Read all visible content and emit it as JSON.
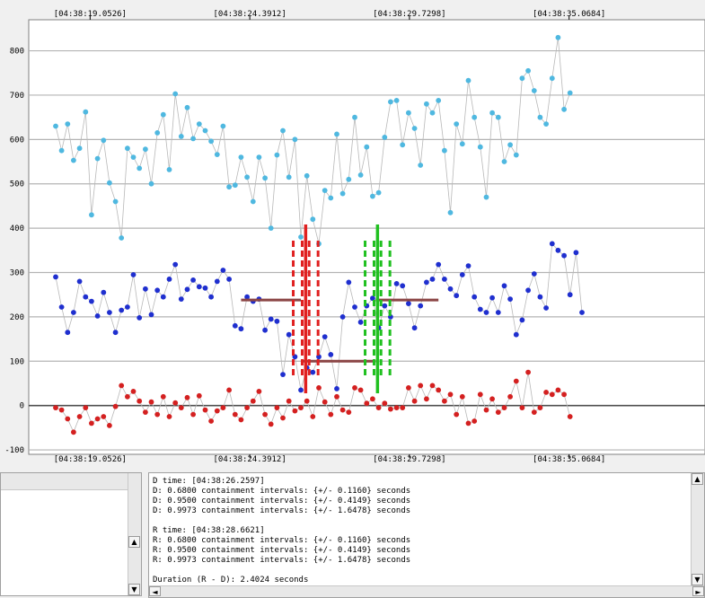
{
  "chart_data": {
    "type": "scatter",
    "title": "",
    "xlabel": "",
    "ylabel": "",
    "ylim": [
      -110,
      870
    ],
    "y_ticks": [
      "800",
      "700",
      "600",
      "500",
      "400",
      "300",
      "200",
      "100",
      "0",
      "-100"
    ],
    "time_labels": [
      "[04:38:19.0526]",
      "[04:38:24.3912]",
      "[04:38:29.7298]",
      "[04:38:35.0684]"
    ],
    "grid": true,
    "legend": "none",
    "sample_interval_s": 0.2,
    "time_origin_s": 17.9,
    "series": [
      {
        "color": "#4fb8e0",
        "values": [
          630,
          575,
          635,
          553,
          580,
          662,
          430,
          557,
          598,
          502,
          460,
          378,
          580,
          560,
          535,
          578,
          500,
          615,
          656,
          532,
          703,
          607,
          672,
          602,
          635,
          620,
          596,
          566,
          630,
          493,
          497,
          560,
          515,
          460,
          560,
          513,
          400,
          565,
          620,
          515,
          600,
          380,
          518,
          420,
          365,
          485,
          468,
          612,
          478,
          510,
          650,
          520,
          583,
          472,
          480,
          605,
          685,
          688,
          588,
          660,
          625,
          542,
          680,
          660,
          688,
          575,
          435,
          635,
          590,
          733,
          650,
          583,
          470,
          660,
          650,
          550,
          588,
          565,
          738,
          755,
          710,
          650,
          635,
          738,
          830,
          668,
          705
        ]
      },
      {
        "color": "#1f2fcf",
        "values": [
          290,
          222,
          165,
          210,
          280,
          245,
          235,
          202,
          255,
          210,
          165,
          215,
          222,
          295,
          198,
          263,
          205,
          260,
          245,
          285,
          318,
          240,
          262,
          283,
          268,
          265,
          245,
          280,
          305,
          285,
          180,
          173,
          245,
          235,
          240,
          170,
          195,
          190,
          70,
          160,
          110,
          35,
          85,
          75,
          110,
          155,
          115,
          38,
          200,
          278,
          222,
          188,
          225,
          242,
          175,
          225,
          200,
          275,
          270,
          230,
          175,
          225,
          278,
          285,
          318,
          285,
          263,
          248,
          295,
          315,
          245,
          217,
          210,
          243,
          210,
          270,
          240,
          160,
          193,
          260,
          297,
          245,
          220,
          365,
          350,
          338,
          250,
          345,
          210
        ]
      },
      {
        "color": "#d42020",
        "values": [
          -5,
          -10,
          -30,
          -60,
          -25,
          -5,
          -40,
          -30,
          -25,
          -45,
          -2,
          45,
          20,
          32,
          10,
          -15,
          8,
          -20,
          20,
          -25,
          6,
          -5,
          18,
          -20,
          22,
          -10,
          -35,
          -12,
          -5,
          35,
          -20,
          -32,
          -5,
          10,
          32,
          -20,
          -42,
          -5,
          -28,
          10,
          -12,
          -5,
          10,
          -25,
          40,
          8,
          -20,
          20,
          -10,
          -15,
          40,
          35,
          5,
          15,
          -5,
          5,
          -8,
          -5,
          -5,
          40,
          10,
          45,
          15,
          45,
          35,
          10,
          25,
          -20,
          20,
          -40,
          -35,
          25,
          -10,
          15,
          -15,
          -5,
          20,
          55,
          -5,
          75,
          -15,
          -5,
          30,
          25,
          35,
          25,
          -25
        ]
      }
    ],
    "segments": [
      {
        "color": "#8b4545",
        "x0": 24.1,
        "x1": 26.1,
        "y": 238
      },
      {
        "color": "#8b4545",
        "x0": 26.1,
        "x1": 28.6,
        "y": 100
      },
      {
        "color": "#8b4545",
        "x0": 28.6,
        "x1": 30.7,
        "y": 238
      }
    ],
    "markers": [
      {
        "color": "#e02020",
        "center": 26.2597,
        "ci": [
          0.116,
          0.4149
        ]
      },
      {
        "color": "#20c020",
        "center": 28.6621,
        "ci": [
          0.116,
          0.4149
        ]
      }
    ]
  },
  "panel": {
    "lines": [
      "D time: [04:38:26.2597]",
      "D: 0.6800 containment intervals: {+/- 0.1160} seconds",
      "D: 0.9500 containment intervals: {+/- 0.4149} seconds",
      "D: 0.9973 containment intervals: {+/- 1.6478} seconds",
      "",
      "R time: [04:38:28.6621]",
      "R: 0.6800 containment intervals: {+/- 0.1160} seconds",
      "R: 0.9500 containment intervals: {+/- 0.4149} seconds",
      "R: 0.9973 containment intervals: {+/- 1.6478} seconds",
      "",
      "Duration (R - D): 2.4024 seconds"
    ]
  },
  "icons": {
    "scroll_up": "scroll-up-arrow-icon",
    "scroll_down": "scroll-down-arrow-icon",
    "scroll_left": "scroll-left-arrow-icon",
    "scroll_right": "scroll-right-arrow-icon"
  }
}
